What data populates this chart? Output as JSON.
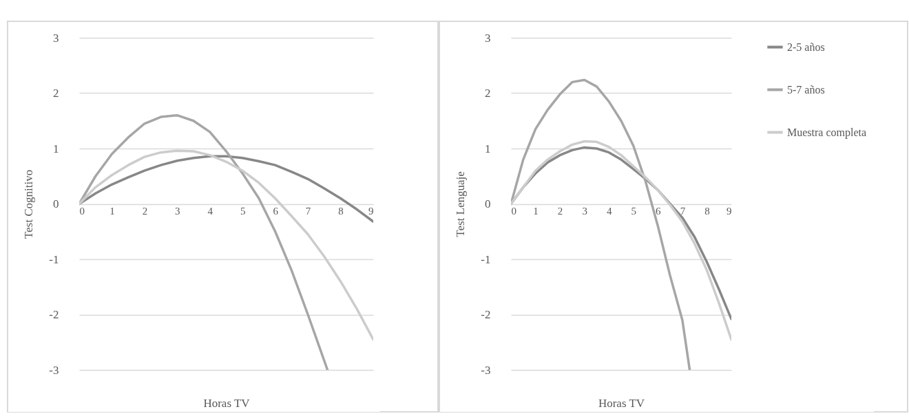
{
  "chart_data": [
    {
      "type": "line",
      "xlabel": "Horas TV",
      "ylabel": "Test Cognitivo",
      "x": [
        0,
        0.5,
        1,
        1.5,
        2,
        2.5,
        3,
        3.5,
        4,
        4.5,
        5,
        5.5,
        6,
        6.5,
        7,
        7.5,
        8,
        8.5,
        9
      ],
      "series": [
        {
          "color": "#878787",
          "values": [
            0,
            0.19,
            0.35,
            0.48,
            0.6,
            0.7,
            0.78,
            0.83,
            0.86,
            0.86,
            0.83,
            0.77,
            0.7,
            0.58,
            0.45,
            0.28,
            0.1,
            -0.1,
            -0.32
          ]
        },
        {
          "color": "#a6a6a6",
          "x": [
            0,
            0.5,
            1,
            1.5,
            2,
            2.5,
            3,
            3.5,
            4,
            4.5,
            5,
            5.5,
            6,
            6.5,
            7,
            7.6
          ],
          "values": [
            0,
            0.5,
            0.9,
            1.2,
            1.45,
            1.57,
            1.6,
            1.5,
            1.3,
            0.95,
            0.55,
            0.1,
            -0.5,
            -1.2,
            -2.0,
            -3.0
          ]
        },
        {
          "color": "#cccccc",
          "values": [
            0,
            0.3,
            0.52,
            0.7,
            0.85,
            0.93,
            0.96,
            0.95,
            0.88,
            0.76,
            0.6,
            0.38,
            0.1,
            -0.22,
            -0.55,
            -0.95,
            -1.4,
            -1.9,
            -2.45
          ]
        }
      ],
      "xlim": [
        0,
        9
      ],
      "xticks": [
        0,
        1,
        2,
        3,
        4,
        5,
        6,
        7,
        8,
        9
      ],
      "ylim": [
        -3,
        3
      ],
      "yticks": [
        -3,
        -2,
        -1,
        0,
        1,
        2,
        3
      ],
      "grid": "y"
    },
    {
      "type": "line",
      "xlabel": "Horas TV",
      "ylabel": "Test Lenguaje",
      "x": [
        0,
        0.5,
        1,
        1.5,
        2,
        2.5,
        3,
        3.5,
        4,
        4.5,
        5,
        5.5,
        6,
        6.5,
        7,
        7.5,
        8,
        8.5,
        9
      ],
      "series": [
        {
          "name": "2-5 años",
          "color": "#878787",
          "values": [
            0,
            0.3,
            0.55,
            0.75,
            0.88,
            0.97,
            1.02,
            1.0,
            0.93,
            0.8,
            0.63,
            0.45,
            0.25,
            0.0,
            -0.25,
            -0.6,
            -1.05,
            -1.55,
            -2.08
          ]
        },
        {
          "name": "5-7 años",
          "color": "#a6a6a6",
          "x": [
            0,
            0.5,
            1,
            1.5,
            2,
            2.5,
            3,
            3.5,
            4,
            4.5,
            5,
            5.5,
            6,
            6.5,
            7,
            7.3
          ],
          "values": [
            0,
            0.8,
            1.35,
            1.7,
            1.98,
            2.2,
            2.24,
            2.12,
            1.85,
            1.5,
            1.05,
            0.4,
            -0.4,
            -1.3,
            -2.1,
            -3.0
          ]
        },
        {
          "name": "Muestra completa",
          "color": "#cccccc",
          "values": [
            0,
            0.3,
            0.6,
            0.8,
            0.95,
            1.07,
            1.13,
            1.12,
            1.03,
            0.88,
            0.68,
            0.48,
            0.25,
            -0.02,
            -0.32,
            -0.72,
            -1.2,
            -1.8,
            -2.45
          ]
        }
      ],
      "xlim": [
        0,
        9
      ],
      "xticks": [
        0,
        1,
        2,
        3,
        4,
        5,
        6,
        7,
        8,
        9
      ],
      "ylim": [
        -3,
        3
      ],
      "yticks": [
        -3,
        -2,
        -1,
        0,
        1,
        2,
        3
      ],
      "grid": "y",
      "legend": "right"
    }
  ]
}
